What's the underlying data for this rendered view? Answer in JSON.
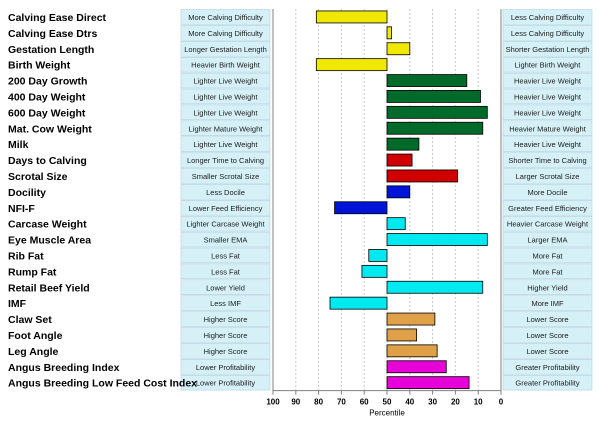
{
  "chart_data": {
    "type": "bar",
    "orientation": "horizontal",
    "xlabel": "Percentile",
    "xlim": [
      100,
      0
    ],
    "x_reversed": true,
    "xticks": [
      100,
      90,
      80,
      70,
      60,
      50,
      40,
      30,
      20,
      10,
      0
    ],
    "baseline": 50,
    "grid": true,
    "categories": [
      "Calving Ease Direct",
      "Calving Ease Dtrs",
      "Gestation Length",
      "Birth Weight",
      "200 Day Growth",
      "400 Day Weight",
      "600 Day Weight",
      "Mat. Cow Weight",
      "Milk",
      "Days to Calving",
      "Scrotal Size",
      "Docility",
      "NFI-F",
      "Carcase Weight",
      "Eye Muscle Area",
      "Rib Fat",
      "Rump Fat",
      "Retail Beef Yield",
      "IMF",
      "Claw Set",
      "Foot Angle",
      "Leg Angle",
      "Angus Breeding Index",
      "Angus Breeding Low Feed Cost Index"
    ],
    "values": [
      81,
      48,
      40,
      81,
      15,
      9,
      6,
      8,
      36,
      39,
      19,
      40,
      73,
      42,
      6,
      58,
      61,
      8,
      75,
      29,
      37,
      28,
      24,
      14
    ],
    "colors": [
      "#f0e800",
      "#f0e800",
      "#f0e800",
      "#f0e800",
      "#006a2a",
      "#006a2a",
      "#006a2a",
      "#006a2a",
      "#006a2a",
      "#d00000",
      "#d00000",
      "#0014d8",
      "#0014d8",
      "#00e8f0",
      "#00e8f0",
      "#00e8f0",
      "#00e8f0",
      "#00e8f0",
      "#00e8f0",
      "#e0a048",
      "#e0a048",
      "#e0a048",
      "#e800d8",
      "#e800d8"
    ],
    "left_labels": [
      "More Calving Difficulty",
      "More Calving Difficulty",
      "Longer Gestation Length",
      "Heavier Birth Weight",
      "Lighter Live Weight",
      "Lighter Live Weight",
      "Lighter Live Weight",
      "Lighter Mature Weight",
      "Lighter Live Weight",
      "Longer Time to Calving",
      "Smaller Scrotal Size",
      "Less Docile",
      "Lower Feed Efficiency",
      "Lighter Carcase Weight",
      "Smaller EMA",
      "Less Fat",
      "Less Fat",
      "Lower Yield",
      "Less IMF",
      "Higher Score",
      "Higher Score",
      "Higher Score",
      "Lower Profitability",
      "Lower Profitability"
    ],
    "right_labels": [
      "Less Calving Difficulty",
      "Less Calving Difficulty",
      "Shorter Gestation Length",
      "Lighter Birth Weight",
      "Heavier Live Weight",
      "Heavier Live Weight",
      "Heavier Live Weight",
      "Heavier Mature Weight",
      "Heavier Live Weight",
      "Shorter Time to Calving",
      "Larger Scrotal Size",
      "More Docile",
      "Greater Feed Efficiency",
      "Heavier Carcase Weight",
      "Larger EMA",
      "More Fat",
      "More Fat",
      "Higher Yield",
      "More IMF",
      "Lower Score",
      "Lower Score",
      "Lower Score",
      "Greater Profitability",
      "Greater Profitability"
    ]
  },
  "colors": {
    "label_panel": "#d6f0f8",
    "grid": "#c8c8c8",
    "border": "#808080"
  }
}
